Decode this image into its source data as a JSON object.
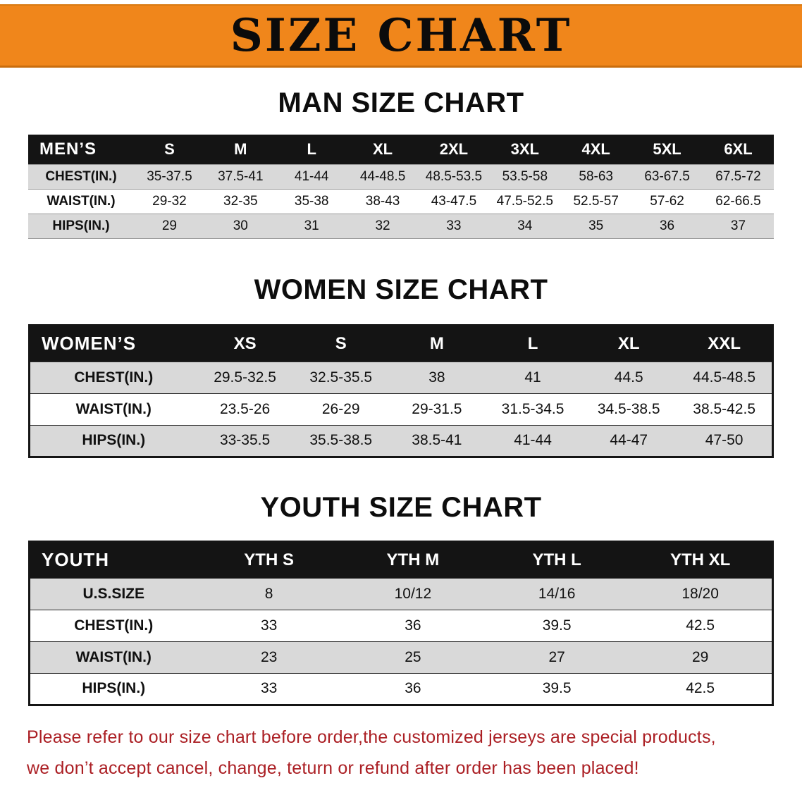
{
  "banner": {
    "title": "SIZE CHART"
  },
  "colors": {
    "banner_orange": "#f0861b",
    "table_header_black": "#141414",
    "shaded_row_gray": "#d9d9d9",
    "disclaimer_red": "#ab1f24"
  },
  "chart_data": [
    {
      "type": "table",
      "title": "MAN SIZE CHART",
      "corner_label": "MEN’S",
      "columns": [
        "S",
        "M",
        "L",
        "XL",
        "2XL",
        "3XL",
        "4XL",
        "5XL",
        "6XL"
      ],
      "rows": [
        {
          "label": "CHEST(IN.)",
          "values": [
            "35-37.5",
            "37.5-41",
            "41-44",
            "44-48.5",
            "48.5-53.5",
            "53.5-58",
            "58-63",
            "63-67.5",
            "67.5-72"
          ]
        },
        {
          "label": "WAIST(IN.)",
          "values": [
            "29-32",
            "32-35",
            "35-38",
            "38-43",
            "43-47.5",
            "47.5-52.5",
            "52.5-57",
            "57-62",
            "62-66.5"
          ]
        },
        {
          "label": "HIPS(IN.)",
          "values": [
            "29",
            "30",
            "31",
            "32",
            "33",
            "34",
            "35",
            "36",
            "37"
          ]
        }
      ]
    },
    {
      "type": "table",
      "title": "WOMEN SIZE CHART",
      "corner_label": "WOMEN’S",
      "columns": [
        "XS",
        "S",
        "M",
        "L",
        "XL",
        "XXL"
      ],
      "rows": [
        {
          "label": "CHEST(IN.)",
          "values": [
            "29.5-32.5",
            "32.5-35.5",
            "38",
            "41",
            "44.5",
            "44.5-48.5"
          ]
        },
        {
          "label": "WAIST(IN.)",
          "values": [
            "23.5-26",
            "26-29",
            "29-31.5",
            "31.5-34.5",
            "34.5-38.5",
            "38.5-42.5"
          ]
        },
        {
          "label": "HIPS(IN.)",
          "values": [
            "33-35.5",
            "35.5-38.5",
            "38.5-41",
            "41-44",
            "44-47",
            "47-50"
          ]
        }
      ]
    },
    {
      "type": "table",
      "title": "YOUTH SIZE CHART",
      "corner_label": "YOUTH",
      "columns": [
        "YTH S",
        "YTH M",
        "YTH L",
        "YTH XL"
      ],
      "rows": [
        {
          "label": "U.S.SIZE",
          "values": [
            "8",
            "10/12",
            "14/16",
            "18/20"
          ]
        },
        {
          "label": "CHEST(IN.)",
          "values": [
            "33",
            "36",
            "39.5",
            "42.5"
          ]
        },
        {
          "label": "WAIST(IN.)",
          "values": [
            "23",
            "25",
            "27",
            "29"
          ]
        },
        {
          "label": "HIPS(IN.)",
          "values": [
            "33",
            "36",
            "39.5",
            "42.5"
          ]
        }
      ]
    }
  ],
  "disclaimer": {
    "line1": "Please refer to our size chart before order,the customized jerseys are special products,",
    "line2": "we don’t accept cancel, change, teturn or refund after order has been placed!"
  }
}
